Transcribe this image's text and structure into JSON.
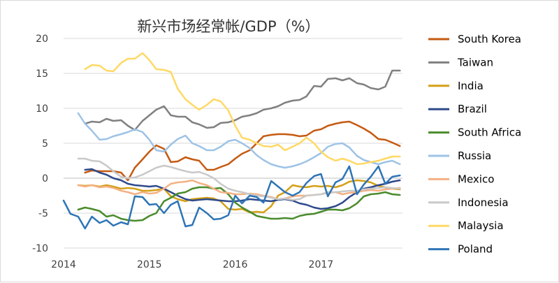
{
  "chart_data": {
    "type": "line",
    "title": "新兴市场经常帐/GDP（%）",
    "xlabel": "",
    "ylabel": "",
    "xlim": [
      2014.0,
      2017.95
    ],
    "ylim": [
      -10,
      20
    ],
    "yticks": [
      20,
      15,
      10,
      5,
      0,
      -5,
      -10
    ],
    "xticks": [
      2014,
      2015,
      2016,
      2017
    ],
    "grid": "horizontal",
    "legend": "right",
    "series": [
      {
        "name": "South Korea",
        "color": "#c55a11",
        "x": [
          2014.25,
          2014.33,
          2014.42,
          2014.5,
          2014.58,
          2014.67,
          2014.75,
          2014.83,
          2014.92,
          2015.0,
          2015.08,
          2015.17,
          2015.25,
          2015.33,
          2015.42,
          2015.5,
          2015.58,
          2015.67,
          2015.75,
          2015.83,
          2015.92,
          2016.0,
          2016.08,
          2016.17,
          2016.25,
          2016.33,
          2016.42,
          2016.5,
          2016.58,
          2016.67,
          2016.75,
          2016.83,
          2016.92,
          2017.0,
          2017.08,
          2017.17,
          2017.25,
          2017.33,
          2017.42,
          2017.5,
          2017.58,
          2017.67,
          2017.75,
          2017.83,
          2017.92
        ],
        "values": [
          0.8,
          1.1,
          1.0,
          1.0,
          1.0,
          0.8,
          -0.3,
          1.5,
          2.7,
          3.8,
          4.7,
          4.2,
          2.3,
          2.4,
          3.0,
          2.7,
          2.5,
          1.2,
          1.2,
          1.6,
          2.0,
          2.8,
          3.5,
          4.0,
          5.0,
          6.0,
          6.2,
          6.3,
          6.3,
          6.2,
          6.0,
          6.1,
          6.8,
          7.0,
          7.5,
          7.8,
          8.0,
          8.1,
          7.6,
          7.1,
          6.5,
          5.6,
          5.5,
          5.1,
          4.6
        ]
      },
      {
        "name": "Taiwan",
        "color": "#808080",
        "x": [
          2014.25,
          2014.33,
          2014.42,
          2014.5,
          2014.58,
          2014.67,
          2014.75,
          2014.83,
          2014.92,
          2015.0,
          2015.08,
          2015.17,
          2015.25,
          2015.33,
          2015.42,
          2015.5,
          2015.58,
          2015.67,
          2015.75,
          2015.83,
          2015.92,
          2016.0,
          2016.08,
          2016.17,
          2016.25,
          2016.33,
          2016.42,
          2016.5,
          2016.58,
          2016.67,
          2016.75,
          2016.83,
          2016.92,
          2017.0,
          2017.08,
          2017.17,
          2017.25,
          2017.33,
          2017.42,
          2017.5,
          2017.58,
          2017.67,
          2017.75,
          2017.83,
          2017.92
        ],
        "values": [
          7.8,
          8.1,
          8.0,
          8.5,
          8.2,
          8.3,
          7.5,
          6.9,
          8.2,
          9.0,
          9.8,
          10.3,
          9.0,
          8.8,
          8.8,
          8.0,
          7.7,
          7.2,
          7.3,
          7.9,
          8.0,
          8.3,
          8.8,
          9.0,
          9.3,
          9.8,
          10.0,
          10.3,
          10.8,
          11.1,
          11.2,
          11.7,
          13.2,
          13.1,
          14.2,
          14.3,
          14.0,
          14.3,
          13.6,
          13.4,
          12.9,
          12.7,
          13.1,
          15.4,
          15.4
        ]
      },
      {
        "name": "India",
        "color": "#d4a017",
        "x": [
          2014.17,
          2014.25,
          2014.33,
          2014.42,
          2014.5,
          2014.58,
          2014.67,
          2014.75,
          2014.83,
          2014.92,
          2015.0,
          2015.08,
          2015.17,
          2015.25,
          2015.33,
          2015.42,
          2015.5,
          2015.58,
          2015.67,
          2015.75,
          2015.83,
          2015.92,
          2016.0,
          2016.08,
          2016.17,
          2016.25,
          2016.33,
          2016.42,
          2016.5,
          2016.58,
          2016.67,
          2016.75,
          2016.83,
          2016.92,
          2017.0,
          2017.08,
          2017.17,
          2017.25,
          2017.33,
          2017.42,
          2017.5,
          2017.58,
          2017.67,
          2017.75,
          2017.83,
          2017.92
        ],
        "values": [
          -1.0,
          -1.1,
          -1.0,
          -1.2,
          -1.0,
          -1.2,
          -1.5,
          -1.4,
          -1.5,
          -1.8,
          -1.8,
          -1.7,
          -1.5,
          -2.6,
          -3.0,
          -3.3,
          -3.0,
          -2.9,
          -2.8,
          -2.9,
          -3.3,
          -4.4,
          -4.5,
          -4.4,
          -4.9,
          -4.8,
          -4.9,
          -4.0,
          -2.5,
          -2.0,
          -1.0,
          -1.2,
          -1.3,
          -1.1,
          -1.2,
          -1.1,
          -1.3,
          -1.0,
          -0.5,
          -0.3,
          -0.4,
          -0.6,
          -1.1,
          -1.3,
          -1.5,
          -1.6
        ]
      },
      {
        "name": "Brazil",
        "color": "#2e4a8b",
        "x": [
          2014.25,
          2014.33,
          2014.42,
          2014.5,
          2014.58,
          2014.67,
          2014.75,
          2014.83,
          2014.92,
          2015.0,
          2015.08,
          2015.17,
          2015.25,
          2015.33,
          2015.42,
          2015.5,
          2015.58,
          2015.67,
          2015.75,
          2015.83,
          2015.92,
          2016.0,
          2016.08,
          2016.17,
          2016.25,
          2016.33,
          2016.42,
          2016.5,
          2016.58,
          2016.67,
          2016.75,
          2016.83,
          2016.92,
          2017.0,
          2017.08,
          2017.17,
          2017.25,
          2017.33,
          2017.42,
          2017.5,
          2017.58,
          2017.67,
          2017.75,
          2017.83,
          2017.92
        ],
        "values": [
          1.2,
          1.3,
          0.8,
          0.5,
          0.0,
          -0.3,
          -0.8,
          -1.0,
          -1.1,
          -1.2,
          -1.1,
          -1.5,
          -2.0,
          -2.5,
          -3.0,
          -3.2,
          -3.1,
          -3.0,
          -3.1,
          -3.2,
          -3.3,
          -3.3,
          -3.2,
          -3.0,
          -3.1,
          -3.2,
          -3.3,
          -3.1,
          -3.0,
          -3.2,
          -3.6,
          -3.8,
          -4.2,
          -4.4,
          -4.3,
          -4.0,
          -3.5,
          -2.7,
          -2.0,
          -1.5,
          -1.3,
          -1.0,
          -0.8,
          -0.5,
          -0.3
        ]
      },
      {
        "name": "South Africa",
        "color": "#4a8b2c",
        "x": [
          2014.17,
          2014.25,
          2014.33,
          2014.42,
          2014.5,
          2014.58,
          2014.67,
          2014.75,
          2014.83,
          2014.92,
          2015.0,
          2015.08,
          2015.17,
          2015.25,
          2015.33,
          2015.42,
          2015.5,
          2015.58,
          2015.67,
          2015.75,
          2015.83,
          2015.92,
          2016.0,
          2016.08,
          2016.17,
          2016.25,
          2016.33,
          2016.42,
          2016.5,
          2016.58,
          2016.67,
          2016.75,
          2016.83,
          2016.92,
          2017.0,
          2017.08,
          2017.17,
          2017.25,
          2017.33,
          2017.42,
          2017.5,
          2017.58,
          2017.67,
          2017.75,
          2017.83,
          2017.92
        ],
        "values": [
          -4.5,
          -4.2,
          -4.4,
          -4.7,
          -5.5,
          -5.3,
          -5.8,
          -6.0,
          -6.1,
          -6.0,
          -5.4,
          -5.0,
          -3.3,
          -2.8,
          -2.2,
          -2.0,
          -1.5,
          -1.3,
          -1.3,
          -1.5,
          -1.4,
          -2.3,
          -3.5,
          -4.2,
          -4.8,
          -5.4,
          -5.6,
          -5.8,
          -5.8,
          -5.7,
          -5.8,
          -5.4,
          -5.2,
          -5.1,
          -4.8,
          -4.5,
          -4.5,
          -4.6,
          -4.3,
          -3.6,
          -2.6,
          -2.3,
          -2.2,
          -2.0,
          -2.3,
          -2.4
        ]
      },
      {
        "name": "Russia",
        "color": "#9dc3e6",
        "x": [
          2014.17,
          2014.25,
          2014.33,
          2014.42,
          2014.5,
          2014.58,
          2014.67,
          2014.75,
          2014.83,
          2014.92,
          2015.0,
          2015.08,
          2015.17,
          2015.25,
          2015.33,
          2015.42,
          2015.5,
          2015.58,
          2015.67,
          2015.75,
          2015.83,
          2015.92,
          2016.0,
          2016.08,
          2016.17,
          2016.25,
          2016.33,
          2016.42,
          2016.5,
          2016.58,
          2016.67,
          2016.75,
          2016.83,
          2016.92,
          2017.0,
          2017.08,
          2017.17,
          2017.25,
          2017.33,
          2017.42,
          2017.5,
          2017.58,
          2017.67,
          2017.75,
          2017.83,
          2017.92
        ],
        "values": [
          9.3,
          7.8,
          6.8,
          5.5,
          5.6,
          6.0,
          6.3,
          6.6,
          7.0,
          6.6,
          5.5,
          4.0,
          3.8,
          4.8,
          5.6,
          6.1,
          5.0,
          4.6,
          4.0,
          4.0,
          4.5,
          5.3,
          5.5,
          5.0,
          4.3,
          3.3,
          2.6,
          2.0,
          1.7,
          1.5,
          1.7,
          2.0,
          2.4,
          3.0,
          3.6,
          4.5,
          4.9,
          5.0,
          4.4,
          3.2,
          2.6,
          2.3,
          2.0,
          2.3,
          2.5,
          2.0
        ]
      },
      {
        "name": "Mexico",
        "color": "#f4b183",
        "x": [
          2014.17,
          2014.25,
          2014.33,
          2014.42,
          2014.5,
          2014.58,
          2014.67,
          2014.75,
          2014.83,
          2014.92,
          2015.0,
          2015.08,
          2015.17,
          2015.25,
          2015.33,
          2015.42,
          2015.5,
          2015.58,
          2015.67,
          2015.75,
          2015.83,
          2015.92,
          2016.0,
          2016.08,
          2016.17,
          2016.25,
          2016.33,
          2016.42,
          2016.5,
          2016.58,
          2016.67,
          2016.75,
          2016.83,
          2016.92,
          2017.0,
          2017.08,
          2017.17,
          2017.25,
          2017.33,
          2017.42,
          2017.5,
          2017.58,
          2017.67,
          2017.75,
          2017.83,
          2017.92
        ],
        "values": [
          -1.0,
          -1.2,
          -1.0,
          -1.3,
          -1.2,
          -1.4,
          -1.8,
          -2.0,
          -2.3,
          -2.0,
          -2.2,
          -2.1,
          -1.5,
          -0.8,
          -0.6,
          -0.5,
          -0.3,
          -0.7,
          -1.0,
          -1.5,
          -2.0,
          -2.1,
          -2.3,
          -2.3,
          -2.2,
          -2.3,
          -2.5,
          -2.7,
          -3.0,
          -2.9,
          -2.6,
          -2.5,
          -2.5,
          -2.4,
          -2.3,
          -2.1,
          -2.0,
          -2.3,
          -2.1,
          -2.0,
          -1.8,
          -1.7,
          -1.8,
          -1.6,
          -1.5,
          -1.4
        ]
      },
      {
        "name": "Indonesia",
        "color": "#c9c9c9",
        "x": [
          2014.17,
          2014.25,
          2014.33,
          2014.42,
          2014.5,
          2014.58,
          2014.67,
          2014.75,
          2014.83,
          2014.92,
          2015.0,
          2015.08,
          2015.17,
          2015.25,
          2015.33,
          2015.42,
          2015.5,
          2015.58,
          2015.67,
          2015.75,
          2015.83,
          2015.92,
          2016.0,
          2016.08,
          2016.17,
          2016.25,
          2016.33,
          2016.42,
          2016.5,
          2016.58,
          2016.67,
          2016.75,
          2016.83,
          2016.92,
          2017.0,
          2017.08,
          2017.17,
          2017.25,
          2017.33,
          2017.42,
          2017.5,
          2017.58,
          2017.67,
          2017.75,
          2017.83,
          2017.92
        ],
        "values": [
          2.8,
          2.8,
          2.5,
          2.4,
          1.8,
          1.0,
          0.2,
          0.0,
          0.1,
          0.5,
          1.0,
          1.5,
          1.8,
          1.6,
          1.3,
          1.0,
          0.8,
          0.9,
          0.5,
          0.0,
          -0.8,
          -1.5,
          -1.8,
          -2.0,
          -2.3,
          -2.5,
          -2.6,
          -2.8,
          -3.0,
          -2.9,
          -3.1,
          -3.0,
          -2.5,
          -2.4,
          -2.3,
          -2.0,
          -2.0,
          -1.9,
          -1.8,
          -1.8,
          -1.6,
          -1.5,
          -1.4,
          -1.3,
          -1.4,
          -1.5
        ]
      },
      {
        "name": "Malaysia",
        "color": "#ffd966",
        "x": [
          2014.25,
          2014.33,
          2014.42,
          2014.5,
          2014.58,
          2014.67,
          2014.75,
          2014.83,
          2014.92,
          2015.0,
          2015.08,
          2015.17,
          2015.25,
          2015.33,
          2015.42,
          2015.5,
          2015.58,
          2015.67,
          2015.75,
          2015.83,
          2015.92,
          2016.0,
          2016.08,
          2016.17,
          2016.25,
          2016.33,
          2016.42,
          2016.5,
          2016.58,
          2016.67,
          2016.75,
          2016.83,
          2016.92,
          2017.0,
          2017.08,
          2017.17,
          2017.25,
          2017.33,
          2017.42,
          2017.5,
          2017.58,
          2017.67,
          2017.75,
          2017.83,
          2017.92
        ],
        "values": [
          15.6,
          16.2,
          16.1,
          15.4,
          15.3,
          16.5,
          17.1,
          17.1,
          17.9,
          16.9,
          15.6,
          15.5,
          15.2,
          12.8,
          11.3,
          10.5,
          9.8,
          10.5,
          11.3,
          11.0,
          9.7,
          7.5,
          5.8,
          5.5,
          5.0,
          4.6,
          4.5,
          4.8,
          4.0,
          4.5,
          5.0,
          5.8,
          5.0,
          3.8,
          3.0,
          2.5,
          2.8,
          2.5,
          2.0,
          2.1,
          2.3,
          2.5,
          2.8,
          3.1,
          3.1
        ]
      },
      {
        "name": "Poland",
        "color": "#2e75b6",
        "x": [
          2014.0,
          2014.08,
          2014.17,
          2014.25,
          2014.33,
          2014.42,
          2014.5,
          2014.58,
          2014.67,
          2014.75,
          2014.83,
          2014.92,
          2015.0,
          2015.08,
          2015.17,
          2015.25,
          2015.33,
          2015.42,
          2015.5,
          2015.58,
          2015.67,
          2015.75,
          2015.83,
          2015.92,
          2016.0,
          2016.08,
          2016.17,
          2016.25,
          2016.33,
          2016.42,
          2016.5,
          2016.58,
          2016.67,
          2016.75,
          2016.83,
          2016.92,
          2017.0,
          2017.08,
          2017.17,
          2017.25,
          2017.33,
          2017.42,
          2017.5,
          2017.58,
          2017.67,
          2017.75,
          2017.83,
          2017.92
        ],
        "values": [
          -3.2,
          -5.1,
          -5.5,
          -7.2,
          -5.5,
          -6.4,
          -6.0,
          -6.8,
          -6.3,
          -6.6,
          -2.6,
          -2.7,
          -3.8,
          -3.7,
          -5.0,
          -3.8,
          -3.3,
          -6.9,
          -6.7,
          -4.2,
          -5.0,
          -5.9,
          -5.8,
          -5.3,
          -2.5,
          -3.6,
          -2.5,
          -2.7,
          -3.5,
          -0.4,
          -1.2,
          -2.0,
          -2.5,
          -2.0,
          -0.7,
          0.3,
          0.6,
          -2.6,
          -0.6,
          -0.1,
          1.7,
          -2.3,
          -0.9,
          0.2,
          1.7,
          -0.8,
          0.2,
          0.4
        ]
      }
    ]
  }
}
